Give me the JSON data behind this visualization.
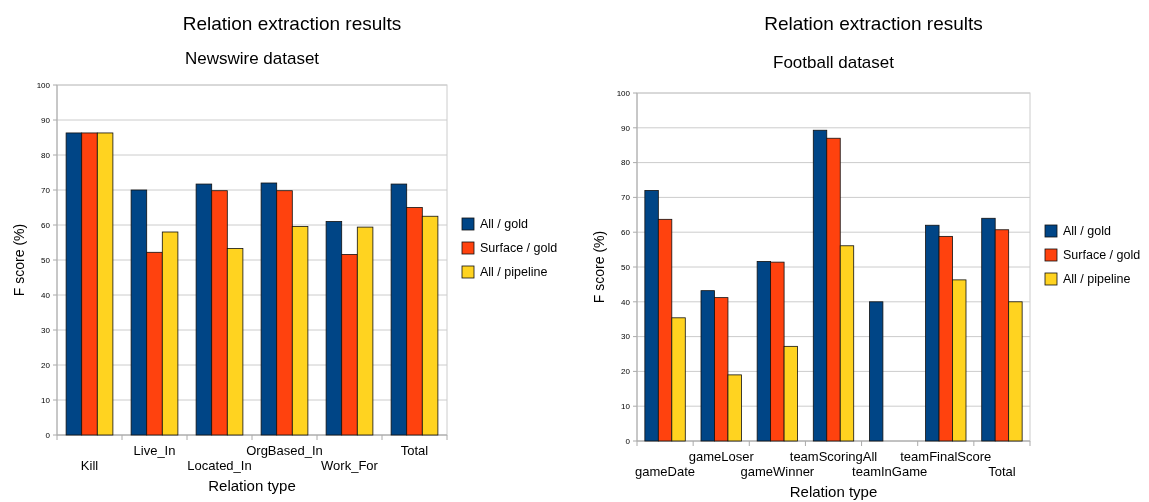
{
  "chart_data": [
    {
      "type": "bar",
      "title": "Relation extraction results",
      "subtitle": "Newswire dataset",
      "xlabel": "Relation type",
      "ylabel": "F score (%)",
      "categories": [
        "Kill",
        "Live_In",
        "Located_In",
        "OrgBased_In",
        "Work_For",
        "Total"
      ],
      "series": [
        {
          "name": "All / gold",
          "color": "#004586",
          "values": [
            86.3,
            70,
            71.7,
            72,
            61,
            71.7
          ]
        },
        {
          "name": "Surface / gold",
          "color": "#ff420e",
          "values": [
            86.3,
            52.2,
            69.8,
            69.8,
            51.6,
            65
          ]
        },
        {
          "name": "All / pipeline",
          "color": "#ffd320",
          "values": [
            86.3,
            58,
            53.3,
            59.6,
            59.4,
            62.5
          ]
        }
      ],
      "ylim": [
        0,
        100
      ],
      "yticks": [
        0,
        10,
        20,
        30,
        40,
        50,
        60,
        70,
        80,
        90,
        100
      ],
      "grid": "y",
      "legend": "right"
    },
    {
      "type": "bar",
      "title": "Relation extraction results",
      "subtitle": "Football dataset",
      "xlabel": "Relation type",
      "ylabel": "F score (%)",
      "categories": [
        "gameDate",
        "gameLoser",
        "gameWinner",
        "teamScoringAll",
        "teamInGame",
        "teamFinalScore",
        "Total"
      ],
      "series": [
        {
          "name": "All / gold",
          "color": "#004586",
          "values": [
            72,
            43.2,
            51.6,
            89.3,
            40,
            62,
            64
          ]
        },
        {
          "name": "Surface / gold",
          "color": "#ff420e",
          "values": [
            63.7,
            41.2,
            51.4,
            87,
            null,
            58.8,
            60.7
          ]
        },
        {
          "name": "All / pipeline",
          "color": "#ffd320",
          "values": [
            35.4,
            19,
            27.2,
            56.1,
            null,
            46.3,
            40
          ]
        }
      ],
      "ylim": [
        0,
        100
      ],
      "yticks": [
        0,
        10,
        20,
        30,
        40,
        50,
        60,
        70,
        80,
        90,
        100
      ],
      "grid": "y",
      "legend": "right"
    }
  ]
}
